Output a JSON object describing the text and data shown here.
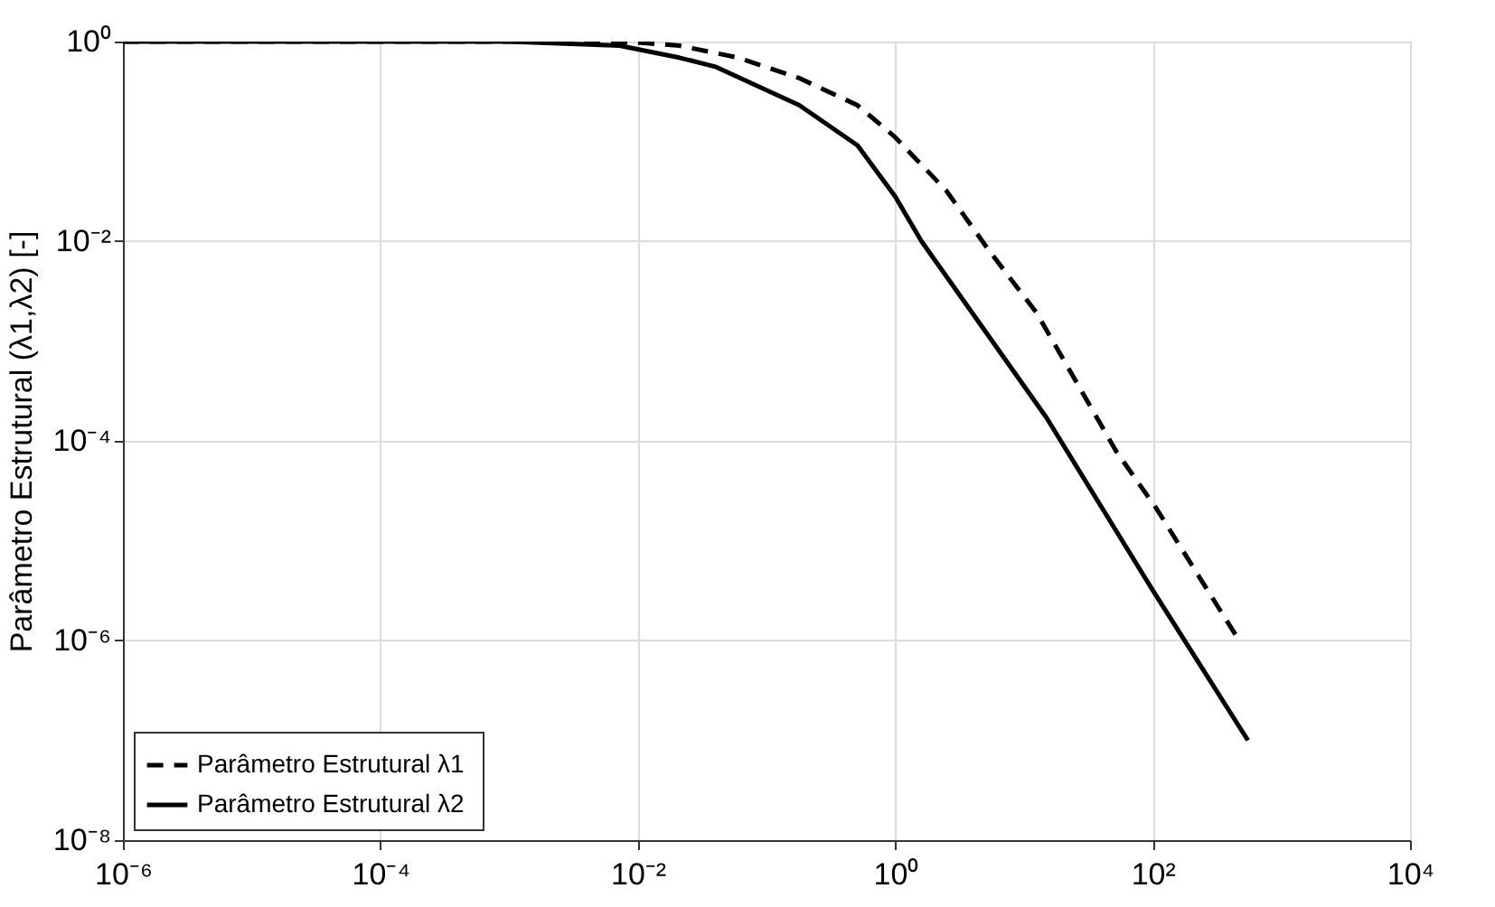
{
  "chart_data": {
    "type": "line",
    "ylabel": "Parâmetro Estrutural   (λ1,λ2) [-]",
    "log": "xy",
    "grid": true,
    "legend": "bottom left",
    "xlim": [
      1e-06,
      10000
    ],
    "ylim": [
      1e-08,
      1
    ],
    "xticks": [
      {
        "value": 1e-06,
        "label": "10⁻⁶"
      },
      {
        "value": 0.0001,
        "label": "10⁻⁴"
      },
      {
        "value": 0.01,
        "label": "10⁻²"
      },
      {
        "value": 1,
        "label": "10⁰"
      },
      {
        "value": 100,
        "label": "10²"
      },
      {
        "value": 10000,
        "label": "10⁴"
      }
    ],
    "yticks": [
      {
        "value": 1e-08,
        "label": "10⁻⁸"
      },
      {
        "value": 1e-06,
        "label": "10⁻⁶"
      },
      {
        "value": 0.0001,
        "label": "10⁻⁴"
      },
      {
        "value": 0.01,
        "label": "10⁻²"
      },
      {
        "value": 1,
        "label": "10⁰"
      }
    ],
    "series": [
      {
        "name": "Parâmetro Estrutural  λ1",
        "color": "#000000",
        "line_style": "dashed",
        "x": [
          1e-06,
          0.001,
          0.01,
          0.021,
          0.06,
          0.18,
          0.51,
          1,
          2.5,
          5.2,
          12.6,
          52,
          107,
          470
        ],
        "values": [
          1,
          1,
          0.98,
          0.91,
          0.69,
          0.43,
          0.23,
          0.11,
          0.032,
          0.0085,
          0.0019,
          7.9e-05,
          2.1e-05,
          1e-06
        ]
      },
      {
        "name": "Parâmetro Estrutural  λ2",
        "color": "#000000",
        "line_style": "solid",
        "x": [
          1e-06,
          0.001,
          0.0072,
          0.021,
          0.04,
          0.18,
          0.51,
          1,
          1.6,
          15,
          100,
          550
        ],
        "values": [
          1,
          1,
          0.91,
          0.69,
          0.56,
          0.23,
          0.091,
          0.028,
          0.01,
          0.00017,
          3.2e-06,
          1e-07
        ]
      }
    ]
  }
}
